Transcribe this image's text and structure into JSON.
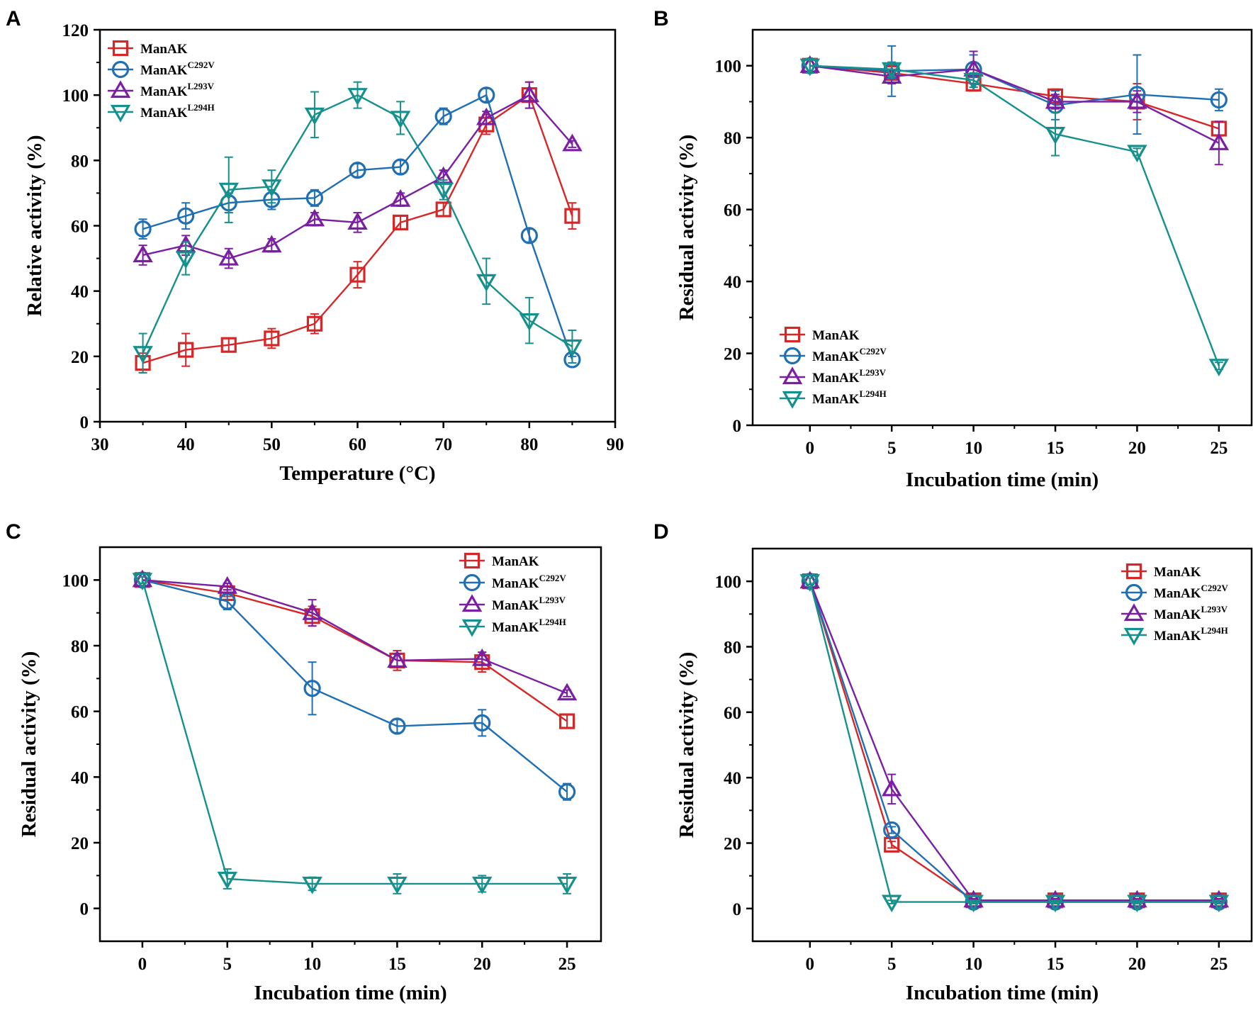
{
  "colors": {
    "ManAK": "#d62728",
    "C292V": "#1f6fb2",
    "L293V": "#7b1fa2",
    "L294H": "#16908c",
    "axis": "#000000"
  },
  "chart_data": [
    {
      "panel": "A",
      "type": "line",
      "xlabel": "Temperature (°C)",
      "ylabel": "Relative activity (%)",
      "xlim": [
        30,
        90
      ],
      "ylim": [
        0,
        120
      ],
      "xticks": [
        30,
        40,
        50,
        60,
        70,
        80,
        90
      ],
      "yticks": [
        0,
        20,
        40,
        60,
        80,
        100,
        120
      ],
      "x": [
        35,
        40,
        45,
        50,
        55,
        60,
        65,
        70,
        75,
        80,
        85
      ],
      "legend_position": "top-left",
      "series": [
        {
          "name": "ManAK",
          "sup": "",
          "key": "ManAK",
          "marker": "square",
          "values": [
            18,
            22,
            23.5,
            25.5,
            30,
            45,
            61,
            65,
            91,
            100,
            63
          ],
          "errors": [
            3,
            5,
            2,
            3,
            3,
            4,
            2,
            2,
            3,
            4,
            4
          ]
        },
        {
          "name": "ManAK",
          "sup": "C292V",
          "key": "C292V",
          "marker": "circle",
          "values": [
            59,
            63,
            67,
            68,
            68.5,
            77,
            78,
            93.5,
            100,
            57,
            19
          ],
          "errors": [
            3,
            4,
            3,
            3,
            2.5,
            2,
            2,
            2.5,
            2,
            2,
            1
          ]
        },
        {
          "name": "ManAK",
          "sup": "L293V",
          "key": "L293V",
          "marker": "triangle-up",
          "values": [
            51,
            54,
            50,
            54,
            62,
            61,
            68,
            75,
            93,
            100,
            85
          ],
          "errors": [
            3,
            3,
            3,
            2,
            2,
            3,
            2,
            2,
            2,
            4,
            1
          ]
        },
        {
          "name": "ManAK",
          "sup": "L294H",
          "key": "L294H",
          "marker": "triangle-down",
          "values": [
            21,
            50,
            71,
            72,
            94,
            100,
            93,
            71,
            43,
            31,
            23
          ],
          "errors": [
            6,
            5,
            10,
            5,
            7,
            4,
            5,
            3,
            7,
            7,
            5
          ]
        }
      ]
    },
    {
      "panel": "B",
      "type": "line",
      "xlabel": "Incubation time (min)",
      "ylabel": "Residual activity (%)",
      "xlim": [
        -3.5,
        27
      ],
      "ylim": [
        0,
        110
      ],
      "xticks": [
        0,
        5,
        10,
        15,
        20,
        25
      ],
      "yticks": [
        0,
        20,
        40,
        60,
        80,
        100
      ],
      "x": [
        0,
        5,
        10,
        15,
        20,
        25
      ],
      "legend_position": "bottom-left",
      "series": [
        {
          "name": "ManAK",
          "sup": "",
          "key": "ManAK",
          "marker": "square",
          "values": [
            100,
            98,
            95,
            91.5,
            90,
            82.5
          ],
          "errors": [
            2,
            2,
            2,
            2,
            5,
            2
          ]
        },
        {
          "name": "ManAK",
          "sup": "C292V",
          "key": "C292V",
          "marker": "circle",
          "values": [
            100,
            98.5,
            99,
            89,
            92,
            90.5
          ],
          "errors": [
            2,
            7,
            4,
            4,
            11,
            3
          ]
        },
        {
          "name": "ManAK",
          "sup": "L293V",
          "key": "L293V",
          "marker": "triangle-up",
          "values": [
            100,
            97,
            99,
            90,
            90,
            78.5
          ],
          "errors": [
            2,
            2,
            5,
            2,
            3,
            6
          ]
        },
        {
          "name": "ManAK",
          "sup": "L294H",
          "key": "L294H",
          "marker": "triangle-down",
          "values": [
            100,
            99,
            96,
            81,
            76,
            16.5
          ],
          "errors": [
            2,
            2,
            2,
            6,
            1,
            1
          ]
        }
      ]
    },
    {
      "panel": "C",
      "type": "line",
      "xlabel": "Incubation time (min)",
      "ylabel": "Residual activity (%)",
      "xlim": [
        -2.5,
        27
      ],
      "ylim": [
        -10,
        110
      ],
      "xticks": [
        0,
        5,
        10,
        15,
        20,
        25
      ],
      "yticks": [
        0,
        20,
        40,
        60,
        80,
        100
      ],
      "x": [
        0,
        5,
        10,
        15,
        20,
        25
      ],
      "legend_position": "top-right",
      "series": [
        {
          "name": "ManAK",
          "sup": "",
          "key": "ManAK",
          "marker": "square",
          "values": [
            100,
            96,
            89,
            75.5,
            75,
            57
          ],
          "errors": [
            1,
            1,
            3,
            3,
            3,
            2
          ]
        },
        {
          "name": "ManAK",
          "sup": "C292V",
          "key": "C292V",
          "marker": "circle",
          "values": [
            100,
            93.5,
            67,
            55.5,
            56.5,
            35.5
          ],
          "errors": [
            1,
            2.5,
            8,
            2,
            4,
            2.5
          ]
        },
        {
          "name": "ManAK",
          "sup": "L293V",
          "key": "L293V",
          "marker": "triangle-up",
          "values": [
            100,
            98,
            90,
            75.5,
            76,
            65.5
          ],
          "errors": [
            1,
            1,
            4,
            2,
            2,
            1
          ]
        },
        {
          "name": "ManAK",
          "sup": "L294H",
          "key": "L294H",
          "marker": "triangle-down",
          "values": [
            100,
            9,
            7.5,
            7.5,
            7.5,
            7.5
          ],
          "errors": [
            1,
            3,
            2,
            3,
            2.5,
            3
          ]
        }
      ]
    },
    {
      "panel": "D",
      "type": "line",
      "xlabel": "Incubation time (min)",
      "ylabel": "Residual activity (%)",
      "xlim": [
        -3.5,
        27
      ],
      "ylim": [
        -10,
        110
      ],
      "xticks": [
        0,
        5,
        10,
        15,
        20,
        25
      ],
      "yticks": [
        0,
        20,
        40,
        60,
        80,
        100
      ],
      "x": [
        0,
        5,
        10,
        15,
        20,
        25
      ],
      "legend_position": "top-right",
      "series": [
        {
          "name": "ManAK",
          "sup": "",
          "key": "ManAK",
          "marker": "square",
          "values": [
            100,
            19.5,
            2.5,
            2.5,
            2.5,
            2.5
          ],
          "errors": [
            1,
            1,
            0.5,
            0.5,
            0.5,
            0.5
          ]
        },
        {
          "name": "ManAK",
          "sup": "C292V",
          "key": "C292V",
          "marker": "circle",
          "values": [
            100,
            24,
            2,
            2,
            2,
            2
          ],
          "errors": [
            1,
            1,
            0.5,
            0.5,
            0.5,
            0.5
          ]
        },
        {
          "name": "ManAK",
          "sup": "L293V",
          "key": "L293V",
          "marker": "triangle-up",
          "values": [
            100,
            36.5,
            2.5,
            2.5,
            2.5,
            2.5
          ],
          "errors": [
            1,
            4.5,
            0.5,
            0.5,
            0.5,
            0.5
          ]
        },
        {
          "name": "ManAK",
          "sup": "L294H",
          "key": "L294H",
          "marker": "triangle-down",
          "values": [
            100,
            2,
            2,
            2,
            2,
            2
          ],
          "errors": [
            1,
            0.5,
            0.5,
            0.5,
            0.5,
            0.5
          ]
        }
      ]
    }
  ]
}
